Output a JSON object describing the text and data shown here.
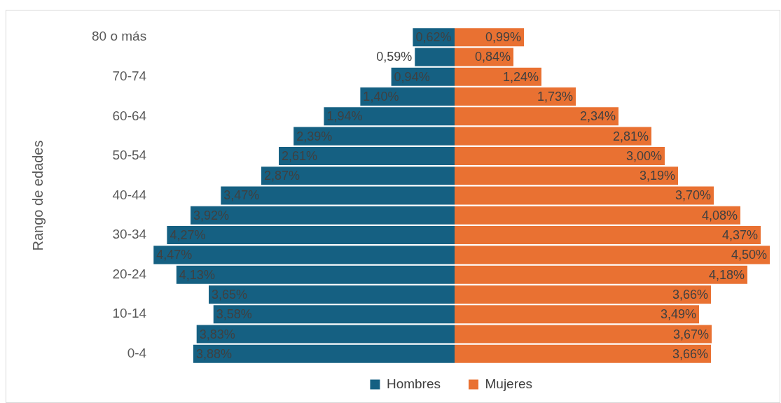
{
  "chart_data": [
    {
      "type": "bar",
      "orientation": "horizontal",
      "ylabel": "Rango de edades",
      "xlim": [
        4.47,
        0
      ],
      "categories": [
        "80 o más",
        null,
        "70-74",
        null,
        "60-64",
        null,
        "50-54",
        null,
        "40-44",
        null,
        "30-34",
        null,
        "20-24",
        null,
        "10-14",
        null,
        "0-4"
      ],
      "series": [
        {
          "name": "Hombres",
          "color": "#156082",
          "values": [
            0.62,
            0.59,
            0.94,
            1.4,
            1.94,
            2.39,
            2.61,
            2.87,
            3.47,
            3.92,
            4.27,
            4.47,
            4.13,
            3.65,
            3.58,
            3.83,
            3.88
          ],
          "value_labels": [
            "0,62%",
            "0,59%",
            "0,94%",
            "1,40%",
            "1,94%",
            "2,39%",
            "2,61%",
            "2,87%",
            "3,47%",
            "3,92%",
            "4,27%",
            "4,47%",
            "4,13%",
            "3,65%",
            "3,58%",
            "3,83%",
            "3,88%"
          ]
        }
      ],
      "tick_labels": "y",
      "grid": false,
      "legend": "bottom right"
    },
    {
      "type": "bar",
      "orientation": "horizontal",
      "series": [
        {
          "name": "Mujeres",
          "color": "#e97132",
          "values": [
            0.99,
            0.84,
            1.24,
            1.73,
            2.34,
            2.81,
            3.0,
            3.19,
            3.7,
            4.08,
            4.37,
            4.5,
            4.18,
            3.66,
            3.49,
            3.67,
            3.66
          ],
          "value_labels": [
            "0,99%",
            "0,84%",
            "1,24%",
            "1,73%",
            "2,34%",
            "2,81%",
            "3,00%",
            "3,19%",
            "3,70%",
            "4,08%",
            "4,37%",
            "4,50%",
            "4,18%",
            "3,66%",
            "3,49%",
            "3,67%",
            "3,66%"
          ]
        }
      ],
      "tick_labels": false,
      "grid": false,
      "legend": "bottom left"
    }
  ]
}
